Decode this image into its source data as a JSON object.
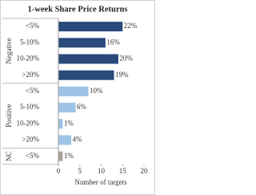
{
  "chart_data": {
    "type": "grouped-bar",
    "title": "1-week Share Price Returns",
    "xlabel": "Number of targets",
    "xlim": [
      0,
      20
    ],
    "xticks": [
      0,
      5,
      10,
      15,
      20
    ],
    "groups": [
      {
        "name": "Negative",
        "color": "#2a4a7b",
        "categories": [
          "<5%",
          "5-10%",
          "10-20%",
          ">20%"
        ],
        "values": [
          15,
          11,
          14,
          13
        ],
        "value_labels": [
          "22%",
          "16%",
          "20%",
          "19%"
        ]
      },
      {
        "name": "Positive",
        "color": "#9dc3e6",
        "categories": [
          "<5%",
          "5-10%",
          "10-20%",
          ">20%"
        ],
        "values": [
          7,
          4,
          1,
          3
        ],
        "value_labels": [
          "10%",
          "6%",
          "1%",
          "4%"
        ]
      },
      {
        "name": "NC",
        "color": "#aaa39c",
        "categories": [
          "<5%"
        ],
        "values": [
          1
        ],
        "value_labels": [
          "1%"
        ]
      }
    ]
  }
}
